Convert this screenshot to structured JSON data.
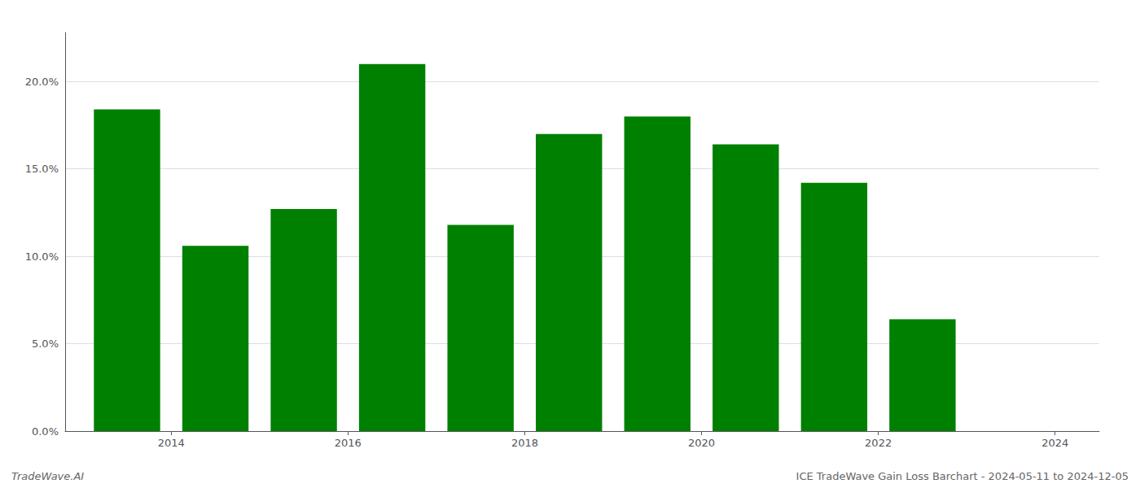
{
  "chart_data": {
    "type": "bar",
    "x": [
      2013.5,
      2014.5,
      2015.5,
      2016.5,
      2017.5,
      2018.5,
      2019.5,
      2020.5,
      2021.5,
      2022.5
    ],
    "values": [
      0.184,
      0.106,
      0.127,
      0.21,
      0.118,
      0.17,
      0.18,
      0.164,
      0.142,
      0.064
    ],
    "color": "#008000",
    "xlim": [
      2012.8,
      2024.5
    ],
    "xticks": [
      2014,
      2016,
      2018,
      2020,
      2022,
      2024
    ],
    "ylim": [
      0.0,
      0.228
    ],
    "yticks": [
      {
        "value": 0.0,
        "label": "0.0%"
      },
      {
        "value": 0.05,
        "label": "5.0%"
      },
      {
        "value": 0.1,
        "label": "10.0%"
      },
      {
        "value": 0.15,
        "label": "15.0%"
      },
      {
        "value": 0.2,
        "label": "20.0%"
      }
    ],
    "grid": true,
    "annotations": [
      "TradeWave.AI",
      "ICE TradeWave Gain Loss Barchart - 2024-05-11 to 2024-12-05"
    ]
  }
}
